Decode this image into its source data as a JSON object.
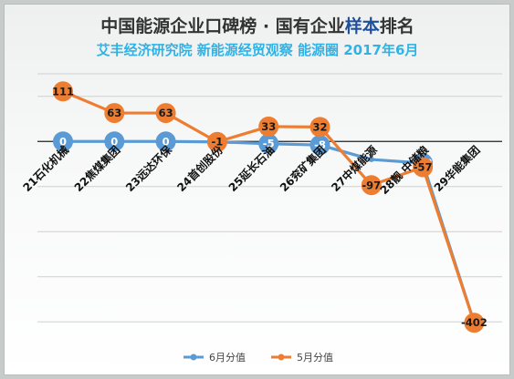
{
  "title": {
    "prefix": "中国能源企业口碑榜 · 国有企业",
    "accent": "样本",
    "suffix": "排名"
  },
  "subtitle": "艾丰经济研究院 新能源经贸观察 能源圈 2017年6月",
  "colors": {
    "title_dark": "#333333",
    "title_accent": "#1f4e9c",
    "subtitle": "#2fb3e6",
    "series_june": "#5b9bd5",
    "series_may": "#ed7d31",
    "label_on_orange": "#1a1a1a",
    "label_on_blue": "#ffffff",
    "gridline": "#d0d0d0",
    "zero_line": "#222222"
  },
  "chart_data": {
    "type": "line",
    "categories": [
      "21石化机械",
      "22焦煤集团",
      "23远达环保",
      "24首创股份",
      "25延长石油",
      "26兖矿集团",
      "27中煤能源",
      "28靓 中储粮",
      "29华能集团"
    ],
    "ylim": [
      -450,
      150
    ],
    "grid": true,
    "legend_position": "bottom",
    "series": [
      {
        "name": "6月分值",
        "values": [
          0,
          0,
          0,
          -1,
          -5,
          -8,
          -40,
          -48,
          -402
        ]
      },
      {
        "name": "5月分值",
        "values": [
          111,
          63,
          63,
          -1,
          33,
          32,
          -97,
          -57,
          -402
        ]
      }
    ],
    "data_labels": {
      "6月分值": [
        "0",
        "0",
        "0",
        "",
        "-5",
        "-8",
        "",
        "-48",
        ""
      ],
      "5月分值": [
        "111",
        "63",
        "63",
        "-1",
        "33",
        "32",
        "-97",
        "-57",
        "-402"
      ]
    }
  }
}
